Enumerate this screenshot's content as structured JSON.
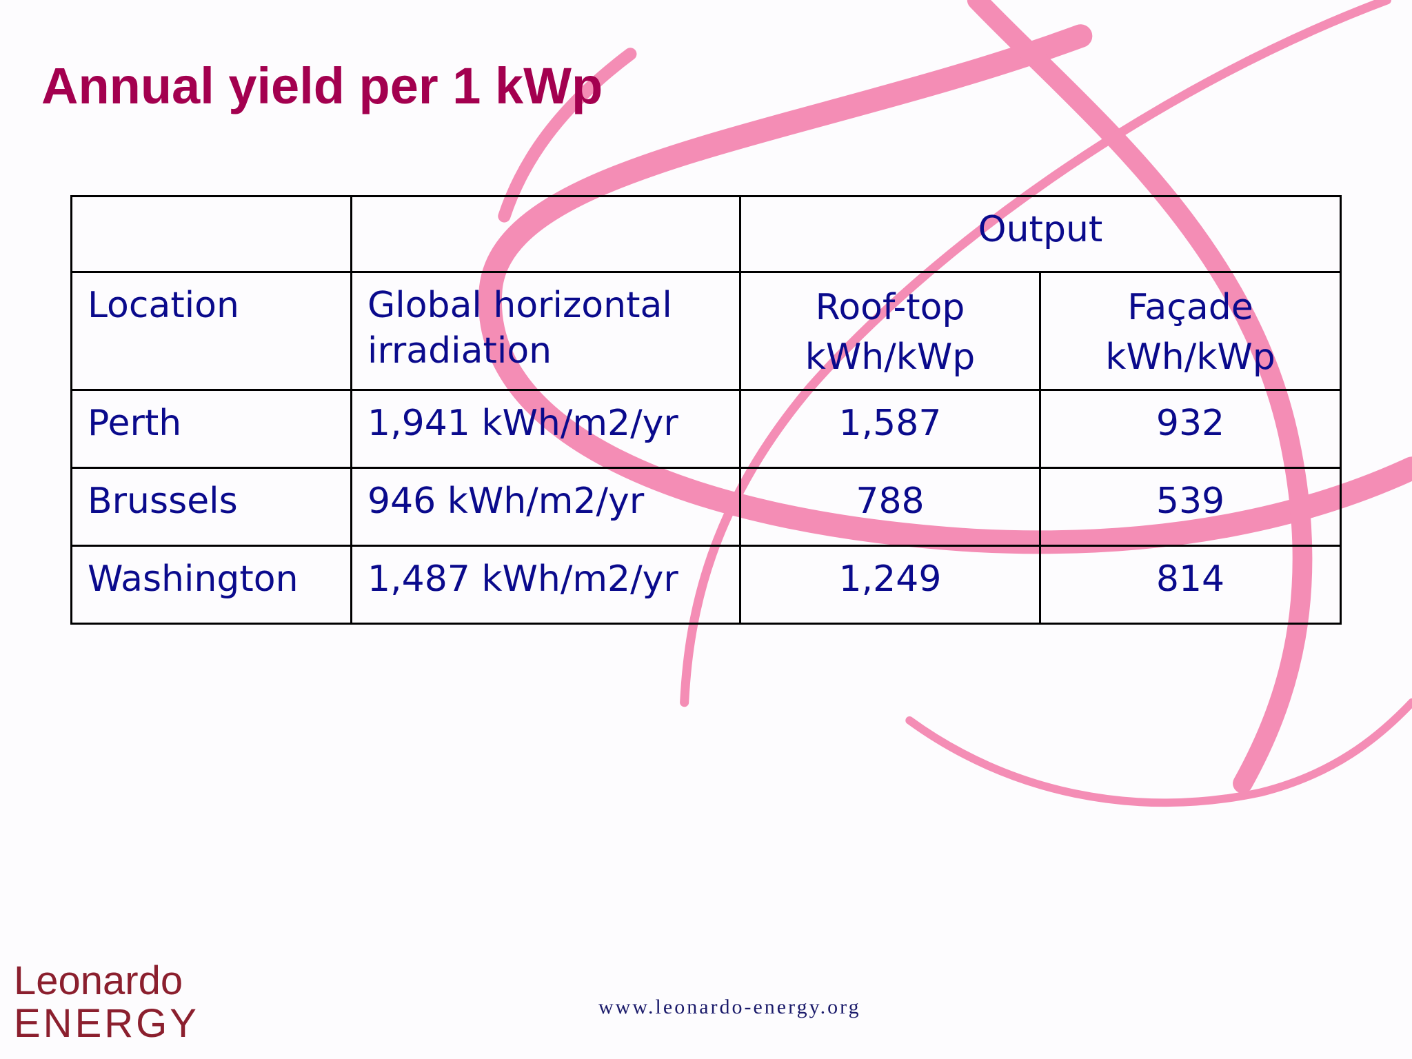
{
  "title": "Annual yield per 1 kWp",
  "table": {
    "group_header": "Output",
    "columns": [
      {
        "label": "Location"
      },
      {
        "label": "Global horizontal irradiation"
      },
      {
        "label": "Roof-top",
        "unit": "kWh/kWp"
      },
      {
        "label": "Façade",
        "unit": "kWh/kWp"
      }
    ],
    "rows": [
      [
        "Perth",
        "1,941 kWh/m2/yr",
        "1,587",
        "932"
      ],
      [
        "Brussels",
        "946 kWh/m2/yr",
        "788",
        "539"
      ],
      [
        "Washington",
        "1,487 kWh/m2/yr",
        "1,249",
        "814"
      ]
    ]
  },
  "logo": {
    "line1": "Leonardo",
    "line2": "ENERGY"
  },
  "footer_url": "www.leonardo-energy.org"
}
